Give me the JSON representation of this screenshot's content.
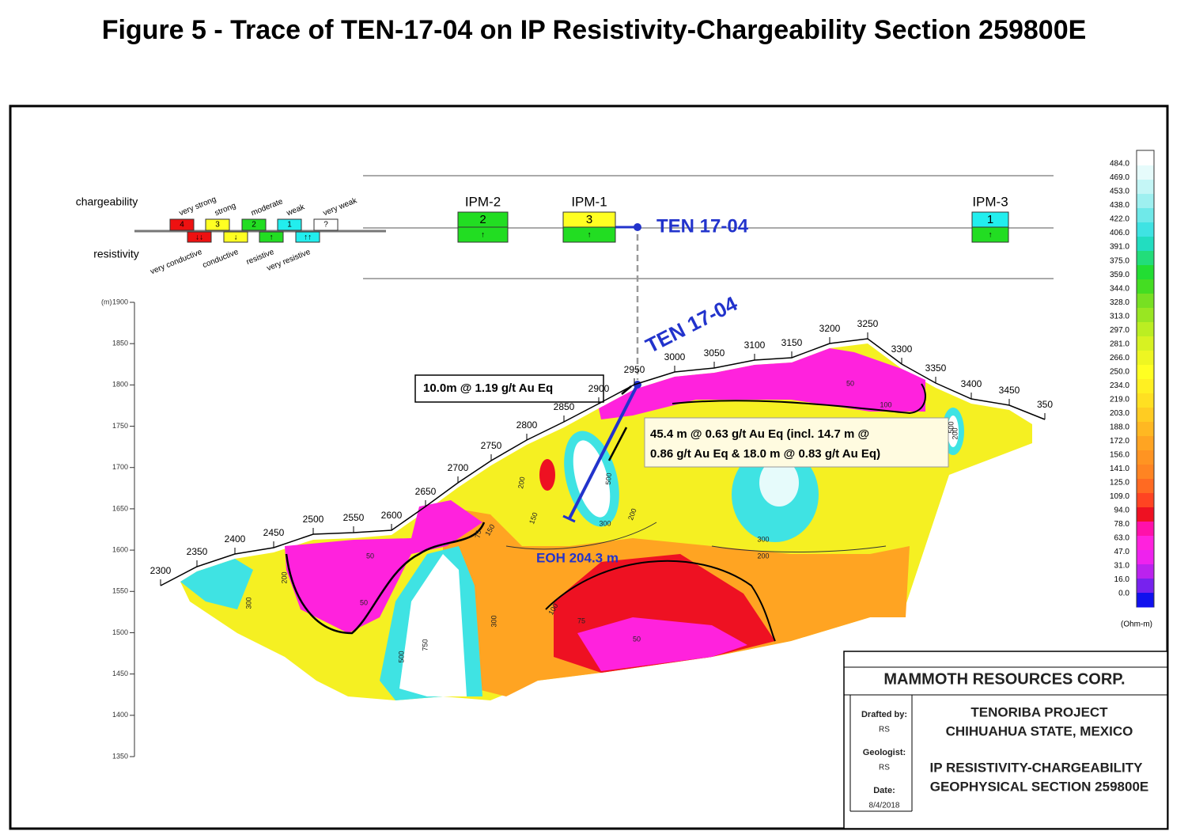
{
  "title": "Figure 5 - Trace of TEN-17-04 on IP Resistivity-Chargeability Section 259800E",
  "legend": {
    "chargeability_label": "chargeability",
    "resistivity_label": "resistivity",
    "chargeability_codes": [
      "4",
      "3",
      "2",
      "1",
      "?"
    ],
    "chargeability_names": [
      "very strong",
      "strong",
      "moderate",
      "weak",
      "very weak"
    ],
    "chargeability_colors": [
      "#ee1111",
      "#ffff22",
      "#22dd22",
      "#22eeee",
      "#ffffff"
    ],
    "resistivity_symbols": [
      "↓↓",
      "↓",
      "↑",
      "↑↑"
    ],
    "resistivity_names": [
      "very conductive",
      "conductive",
      "resistive",
      "very resistive"
    ],
    "resistivity_colors": [
      "#ee1111",
      "#ffff22",
      "#22dd22",
      "#22eeee"
    ]
  },
  "anomalies": [
    {
      "name": "IPM-2",
      "code": "2",
      "symbol": "↑",
      "color": "#22dd22"
    },
    {
      "name": "IPM-1",
      "code": "3",
      "symbol": "↑",
      "color": "#ffff22"
    },
    {
      "name": "IPM-3",
      "code": "1",
      "symbol": "↑",
      "color": "#22eeee"
    }
  ],
  "drill_hole": {
    "name": "TEN 17-04",
    "section_name": "TEN 17-04",
    "eoh": "EOH 204.3 m",
    "intercept_1": "10.0m @ 1.19 g/t Au Eq",
    "intercept_2": [
      "45.4 m @ 0.63 g/t Au Eq (incl. 14.7 m @",
      "0.86 g/t Au Eq & 18.0 m @ 0.83 g/t Au Eq)"
    ]
  },
  "elevation_axis": {
    "unit": "(m)",
    "ticks": [
      1900,
      1850,
      1800,
      1750,
      1700,
      1650,
      1600,
      1550,
      1500,
      1450,
      1400,
      1350
    ]
  },
  "stations": [
    "2300",
    "2350",
    "2400",
    "2450",
    "2500",
    "2550",
    "2600",
    "2650",
    "2700",
    "2750",
    "2800",
    "2850",
    "2900",
    "2950",
    "3000",
    "3050",
    "3100",
    "3150",
    "3200",
    "3250",
    "3300",
    "3350",
    "3400",
    "3450",
    "350"
  ],
  "contour_labels": [
    "50",
    "200",
    "300",
    "50",
    "500",
    "750",
    "150",
    "300",
    "200",
    "150",
    "75",
    "500",
    "300",
    "200",
    "100",
    "75",
    "50",
    "300",
    "200",
    "100",
    "200",
    "500",
    "50"
  ],
  "color_scale": {
    "labels": [
      "484.0",
      "469.0",
      "453.0",
      "438.0",
      "422.0",
      "406.0",
      "391.0",
      "375.0",
      "359.0",
      "344.0",
      "328.0",
      "313.0",
      "297.0",
      "281.0",
      "266.0",
      "250.0",
      "234.0",
      "219.0",
      "203.0",
      "188.0",
      "172.0",
      "156.0",
      "141.0",
      "125.0",
      "109.0",
      "94.0",
      "78.0",
      "63.0",
      "47.0",
      "31.0",
      "16.0",
      "0.0"
    ],
    "colors": [
      "#ffffff",
      "#e6fbfb",
      "#c4f6f6",
      "#9ef0f0",
      "#6fe9e9",
      "#3fe3e3",
      "#22ddc0",
      "#22dd7a",
      "#22dd33",
      "#44dd22",
      "#77e022",
      "#99e622",
      "#bbee22",
      "#d7f222",
      "#eef622",
      "#ffff22",
      "#fff022",
      "#ffe022",
      "#ffcc22",
      "#ffb822",
      "#ffa422",
      "#ff9422",
      "#ff8422",
      "#ff6a22",
      "#ff4422",
      "#ee1122",
      "#ff11aa",
      "#ff22dd",
      "#ee22ee",
      "#bb22ee",
      "#7722ee",
      "#1111ee"
    ],
    "unit": "(Ohm-m)"
  },
  "title_block": {
    "company": "MAMMOTH RESOURCES CORP.",
    "fields": [
      {
        "label": "Drafted by:",
        "value": "RS"
      },
      {
        "label": "Geologist:",
        "value": "RS"
      },
      {
        "label": "Date:",
        "value": "8/4/2018"
      }
    ],
    "project": [
      "TENORIBA PROJECT",
      "CHIHUAHUA STATE, MEXICO"
    ],
    "section": [
      "IP RESISTIVITY-CHARGEABILITY",
      "GEOPHYSICAL SECTION 259800E"
    ]
  }
}
